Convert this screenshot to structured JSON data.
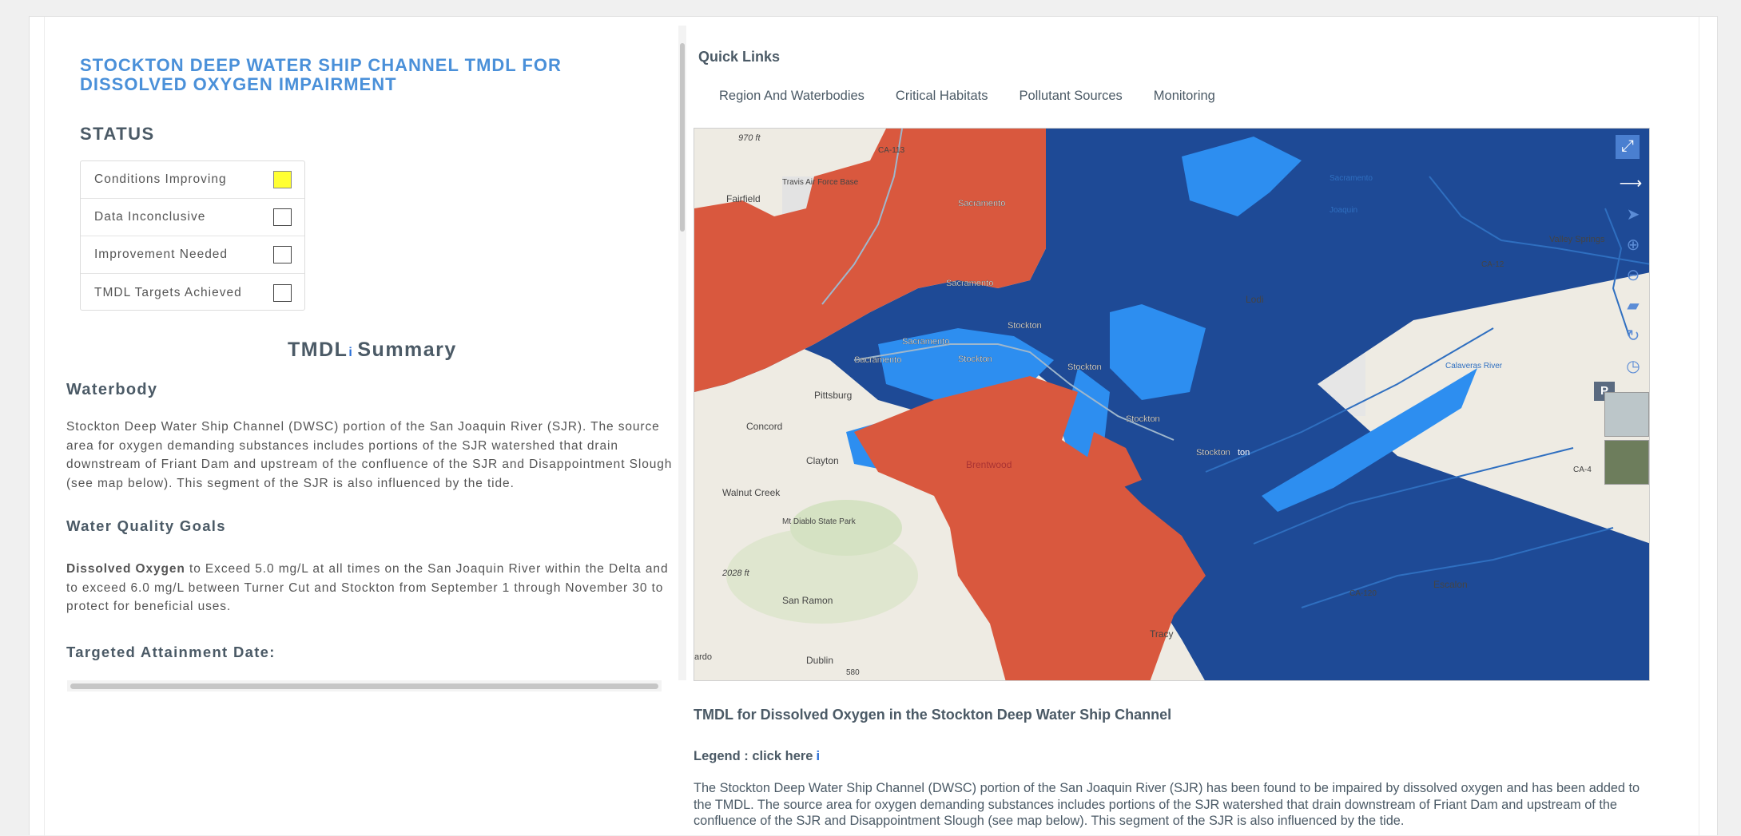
{
  "left": {
    "title": "STOCKTON DEEP WATER SHIP CHANNEL TMDL FOR DISSOLVED OXYGEN IMPAIRMENT",
    "status_heading": "STATUS",
    "status_items": [
      {
        "label": "Conditions Improving",
        "checked": true
      },
      {
        "label": "Data Inconclusive",
        "checked": false
      },
      {
        "label": "Improvement Needed",
        "checked": false
      },
      {
        "label": "TMDL Targets Achieved",
        "checked": false
      }
    ],
    "summary_prefix": "TMDL",
    "summary_info_icon": "i",
    "summary_suffix": "Summary",
    "waterbody_heading": "Waterbody",
    "waterbody_text": "Stockton Deep Water Ship Channel (DWSC) portion of the San Joaquin River (SJR). The source area for oxygen demanding substances includes portions of the SJR watershed that drain downstream of Friant Dam and upstream of the confluence of the SJR and Disappointment Slough (see map below). This segment of the SJR is also influenced by the tide.",
    "wqg_heading": "Water Quality Goals",
    "wqg_bold": "Dissolved Oxygen",
    "wqg_text": " to Exceed 5.0 mg/L at all times on the San Joaquin River within the Delta and to exceed 6.0 mg/L between Turner Cut and Stockton from September 1 through November 30 to protect for beneficial uses.",
    "attainment_heading": "Targeted Attainment Date:"
  },
  "right": {
    "quick_links_heading": "Quick Links",
    "quick_links": [
      "Region And Waterbodies",
      "Critical Habitats",
      "Pollutant Sources",
      "Monitoring"
    ],
    "map_labels": {
      "fairfield": "Fairfield",
      "travis": "Travis Air Force Base",
      "sacramento1": "Sacramento",
      "sacramento2": "Sacramento",
      "sacramento3": "Sacramento",
      "sacramento4": "Sacramento",
      "stockton1": "Stockton",
      "stockton2": "Stockton",
      "stockton3": "Stockton",
      "stockton4": "Stockton",
      "stockton5": "Stockton",
      "concord": "Concord",
      "clayton": "Clayton",
      "walnut_creek": "Walnut Creek",
      "mt_diablo": "Mt Diablo State Park",
      "brentwood": "Brentwood",
      "san_ramon": "San Ramon",
      "dublin": "Dublin",
      "tracy": "Tracy",
      "lodi": "Lodi",
      "escalon": "Escalon",
      "valley_springs": "Valley Springs",
      "pittsburg": "Pittsburg",
      "elev_970": "970 ft",
      "elev_2028": "2028 ft",
      "ca12": "CA-12",
      "ca120": "CA-120",
      "ca113": "CA-113",
      "ca4": "CA-4",
      "calaveras": "Calaveras River",
      "joaquin": "Joaquin",
      "sacramento_r": "Sacramento",
      "ston": "ton",
      "nardo": "ardo",
      "five80": "580",
      "p_badge": "P"
    },
    "map_tools": [
      "expand-icon",
      "arrow-right-icon",
      "pointer-icon",
      "zoom-in-icon",
      "zoom-out-icon",
      "ruler-icon",
      "refresh-icon",
      "clock-icon"
    ],
    "below_title": "TMDL for Dissolved Oxygen in the Stockton Deep Water Ship Channel",
    "legend_label": "Legend : click here",
    "legend_icon": "i",
    "description": "The Stockton Deep Water Ship Channel (DWSC) portion of the San Joaquin River (SJR) has been found to be impaired by dissolved oxygen and has been added to the TMDL. The source area for oxygen demanding substances includes portions of the SJR watershed that drain downstream of Friant Dam and upstream of the confluence of the SJR and Disappointment Slough (see map below). This segment of the SJR is also influenced by the tide."
  },
  "colors": {
    "title_blue": "#4a90d9",
    "status_yellow": "#ffff33",
    "map_red": "#d9583e",
    "map_dark_blue": "#1e4a96",
    "map_light_blue": "#2d8ef0"
  }
}
